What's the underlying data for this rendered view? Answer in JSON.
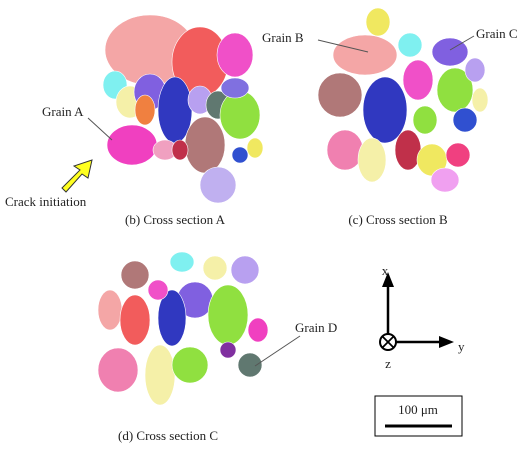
{
  "panels": [
    {
      "caption": "(b) Cross section A",
      "labels": [
        "Grain A"
      ]
    },
    {
      "caption": "(c) Cross section B",
      "labels": [
        "Grain B",
        "Grain C"
      ]
    },
    {
      "caption": "(d) Cross section C",
      "labels": [
        "Grain D"
      ]
    }
  ],
  "annotation": "Crack initiation",
  "axes": {
    "x": "x",
    "y": "y",
    "z": "z"
  },
  "scale_bar": "100 μm"
}
